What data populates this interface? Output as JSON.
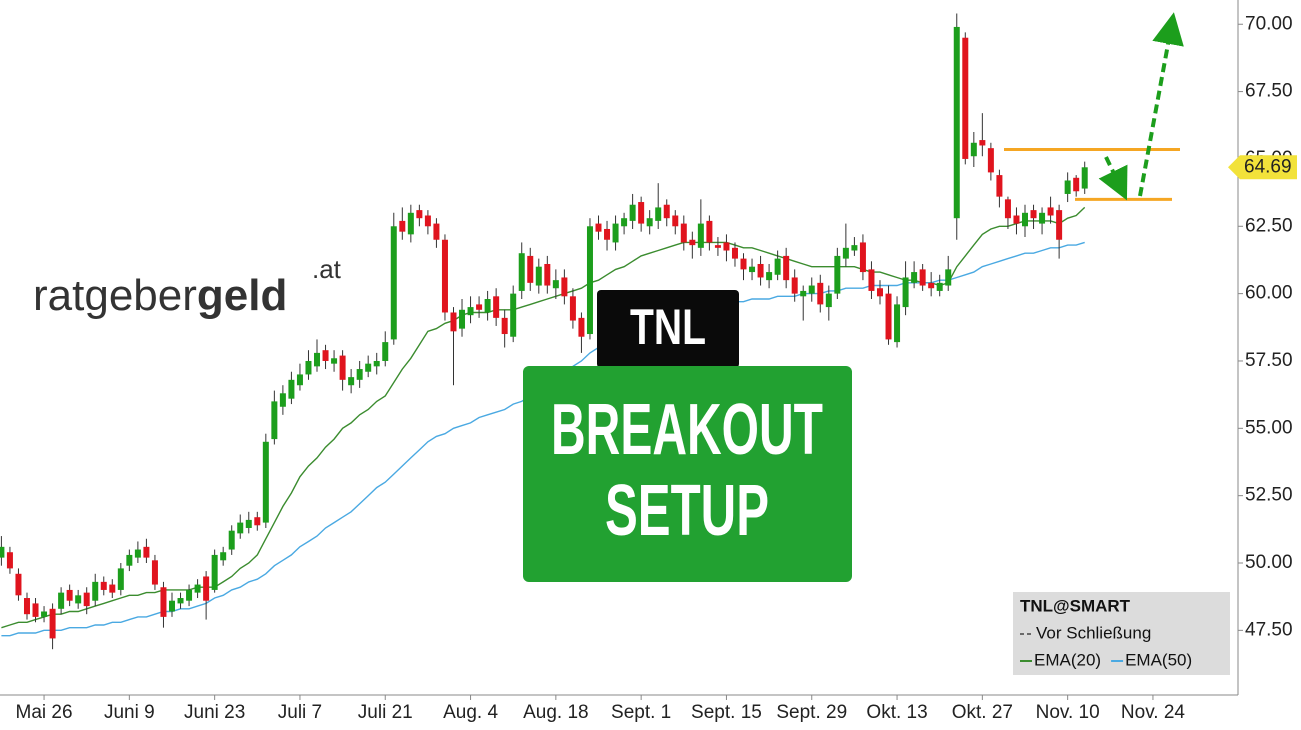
{
  "chart_data": {
    "type": "candlestick",
    "logo": {
      "light": "ratgeber",
      "bold": "geld",
      "suffix": ".at"
    },
    "ticker": "TNL",
    "headline": [
      "BREAKOUT",
      "SETUP"
    ],
    "legend_title": "TNL@SMART",
    "legend_note": "Vor Schließung",
    "up_color": "#1c9e1c",
    "down_color": "#e0141e",
    "level_color": "#f5a623",
    "resistance": 65.35,
    "support": 63.5,
    "categories": [
      null,
      null,
      null,
      null,
      null,
      "Mai 26",
      null,
      null,
      null,
      null,
      null,
      null,
      null,
      null,
      null,
      "Juni 9",
      null,
      null,
      null,
      null,
      null,
      null,
      null,
      null,
      null,
      "Juni 23",
      null,
      null,
      null,
      null,
      null,
      null,
      null,
      null,
      null,
      "Juli 7",
      null,
      null,
      null,
      null,
      null,
      null,
      null,
      null,
      null,
      "Juli 21",
      null,
      null,
      null,
      null,
      null,
      null,
      null,
      null,
      null,
      "Aug. 4",
      null,
      null,
      null,
      null,
      null,
      null,
      null,
      null,
      null,
      "Aug. 18",
      null,
      null,
      null,
      null,
      null,
      null,
      null,
      null,
      null,
      "Sept. 1",
      null,
      null,
      null,
      null,
      null,
      null,
      null,
      null,
      null,
      "Sept. 15",
      null,
      null,
      null,
      null,
      null,
      null,
      null,
      null,
      null,
      "Sept. 29",
      null,
      null,
      null,
      null,
      null,
      null,
      null,
      null,
      null,
      "Okt. 13",
      null,
      null,
      null,
      null,
      null,
      null,
      null,
      null,
      null,
      "Okt. 27",
      null,
      null,
      null,
      null,
      null,
      null,
      null,
      null,
      null,
      "Nov. 10",
      null,
      null,
      null,
      null,
      null,
      null,
      null,
      null,
      null,
      "Nov. 24",
      null,
      null,
      null,
      null
    ],
    "open": [
      50.2,
      50.4,
      49.6,
      48.7,
      48.5,
      48.0,
      48.3,
      48.3,
      49.0,
      48.5,
      48.9,
      48.6,
      49.3,
      49.2,
      49.0,
      49.9,
      50.2,
      50.6,
      50.1,
      49.1,
      48.2,
      48.5,
      48.6,
      48.9,
      49.5,
      49.0,
      50.1,
      50.5,
      51.1,
      51.3,
      51.7,
      51.5,
      54.6,
      55.8,
      56.1,
      56.6,
      57.0,
      57.3,
      57.9,
      57.4,
      57.7,
      56.6,
      56.8,
      57.1,
      57.3,
      57.5,
      58.3,
      62.7,
      62.2,
      63.1,
      62.9,
      62.6,
      62.0,
      59.3,
      58.7,
      59.2,
      59.6,
      59.3,
      59.9,
      59.1,
      58.4,
      60.1,
      61.4,
      60.3,
      61.1,
      60.2,
      60.6,
      59.9,
      59.1,
      58.5,
      62.6,
      62.4,
      61.9,
      62.5,
      62.7,
      63.4,
      62.5,
      62.7,
      63.3,
      62.9,
      62.6,
      62.0,
      61.7,
      62.7,
      61.8,
      61.9,
      61.7,
      61.3,
      60.8,
      61.1,
      60.5,
      60.7,
      61.4,
      60.6,
      59.9,
      60.0,
      60.4,
      59.5,
      60.0,
      61.3,
      61.6,
      61.9,
      60.9,
      60.2,
      60.0,
      58.2,
      59.5,
      60.4,
      60.9,
      60.4,
      60.1,
      60.3,
      62.8,
      69.5,
      65.1,
      65.7,
      65.4,
      64.4,
      63.5,
      62.9,
      62.5,
      63.1,
      62.6,
      63.2,
      63.1,
      63.7,
      64.3,
      63.9,
      null,
      null,
      null,
      null,
      null,
      null,
      null,
      null,
      null,
      null,
      null,
      null
    ],
    "high": [
      51.0,
      50.6,
      49.8,
      48.9,
      48.7,
      48.4,
      48.5,
      49.1,
      49.2,
      49.0,
      49.1,
      49.6,
      49.5,
      49.4,
      50.0,
      50.5,
      50.8,
      50.9,
      50.3,
      49.3,
      48.9,
      48.9,
      49.2,
      49.4,
      49.7,
      50.5,
      50.6,
      51.4,
      51.8,
      51.9,
      51.9,
      54.8,
      56.4,
      56.6,
      57.1,
      57.4,
      57.9,
      58.3,
      58.1,
      57.9,
      57.9,
      57.2,
      57.5,
      57.7,
      57.8,
      58.6,
      63.0,
      63.2,
      63.3,
      63.3,
      63.1,
      62.8,
      62.2,
      59.5,
      59.8,
      59.9,
      59.9,
      60.1,
      60.2,
      59.4,
      60.3,
      61.9,
      61.7,
      61.3,
      61.4,
      60.9,
      60.9,
      60.2,
      59.3,
      62.8,
      62.9,
      62.7,
      62.9,
      63.0,
      63.7,
      63.6,
      63.1,
      64.1,
      63.5,
      63.1,
      62.9,
      62.3,
      63.5,
      62.9,
      62.1,
      62.2,
      61.9,
      61.5,
      61.3,
      61.4,
      61.1,
      61.6,
      61.7,
      60.9,
      60.3,
      60.6,
      60.7,
      60.3,
      61.7,
      62.6,
      62.1,
      62.2,
      61.2,
      60.5,
      60.3,
      59.9,
      61.2,
      61.2,
      61.1,
      60.8,
      60.7,
      61.4,
      70.4,
      69.7,
      66.0,
      66.7,
      65.6,
      64.6,
      63.6,
      63.2,
      63.3,
      63.3,
      63.2,
      63.6,
      63.3,
      64.5,
      64.4,
      64.9,
      null,
      null,
      null,
      null,
      null,
      null,
      null,
      null,
      null,
      null,
      null,
      null
    ],
    "low": [
      49.9,
      49.6,
      48.6,
      47.9,
      47.8,
      47.8,
      46.8,
      48.1,
      48.4,
      48.3,
      48.1,
      48.4,
      48.8,
      48.7,
      48.8,
      49.7,
      50.0,
      50.0,
      49.0,
      47.6,
      48.0,
      48.3,
      48.4,
      48.7,
      47.9,
      48.9,
      49.9,
      50.3,
      50.9,
      51.1,
      51.2,
      51.3,
      54.4,
      55.5,
      55.9,
      56.4,
      56.8,
      57.1,
      57.2,
      57.1,
      56.4,
      56.3,
      56.5,
      56.9,
      57.0,
      57.3,
      58.1,
      62.0,
      61.9,
      62.5,
      62.2,
      61.7,
      59.0,
      56.6,
      58.4,
      58.9,
      59.1,
      59.0,
      58.8,
      58.0,
      58.2,
      59.8,
      60.1,
      60.0,
      60.0,
      59.8,
      59.6,
      58.7,
      57.8,
      58.3,
      62.0,
      61.6,
      61.6,
      62.2,
      62.4,
      62.3,
      62.2,
      62.4,
      62.5,
      62.2,
      61.6,
      61.3,
      61.4,
      61.6,
      61.4,
      61.2,
      61.0,
      60.5,
      60.5,
      60.3,
      60.2,
      60.5,
      60.2,
      59.7,
      59.0,
      59.7,
      59.3,
      59.0,
      59.8,
      61.0,
      61.4,
      60.5,
      59.8,
      59.6,
      58.1,
      58.0,
      59.2,
      60.2,
      60.1,
      59.9,
      59.9,
      60.1,
      62.0,
      64.8,
      64.7,
      65.1,
      64.2,
      63.2,
      62.4,
      62.2,
      62.1,
      62.4,
      62.2,
      62.6,
      61.3,
      63.4,
      63.6,
      63.7,
      null,
      null,
      null,
      null,
      null,
      null,
      null,
      null,
      null,
      null,
      null,
      null
    ],
    "close": [
      50.6,
      49.8,
      48.8,
      48.1,
      48.0,
      48.2,
      47.2,
      48.9,
      48.6,
      48.8,
      48.4,
      49.3,
      49.0,
      48.9,
      49.8,
      50.3,
      50.5,
      50.2,
      49.2,
      48.0,
      48.6,
      48.7,
      49.0,
      49.2,
      48.6,
      50.3,
      50.4,
      51.2,
      51.5,
      51.6,
      51.4,
      54.5,
      56.0,
      56.3,
      56.8,
      57.0,
      57.5,
      57.8,
      57.5,
      57.6,
      56.8,
      56.9,
      57.2,
      57.4,
      57.5,
      58.2,
      62.5,
      62.3,
      63.0,
      62.8,
      62.5,
      62.0,
      59.3,
      58.6,
      59.4,
      59.5,
      59.4,
      59.8,
      59.1,
      58.5,
      60.0,
      61.5,
      60.4,
      61.0,
      60.3,
      60.5,
      59.9,
      59.0,
      58.4,
      62.5,
      62.3,
      62.0,
      62.6,
      62.8,
      63.3,
      62.6,
      62.8,
      63.2,
      62.8,
      62.5,
      61.9,
      61.8,
      62.6,
      61.9,
      61.7,
      61.6,
      61.3,
      60.9,
      61.0,
      60.6,
      60.8,
      61.3,
      60.5,
      60.0,
      60.1,
      60.3,
      59.6,
      60.0,
      61.4,
      61.7,
      61.8,
      60.8,
      60.1,
      59.9,
      58.3,
      59.6,
      60.6,
      60.8,
      60.3,
      60.2,
      60.4,
      60.9,
      69.9,
      65.0,
      65.6,
      65.5,
      64.5,
      63.6,
      62.8,
      62.6,
      63.0,
      62.8,
      63.0,
      62.9,
      62.0,
      64.2,
      63.8,
      64.69,
      null,
      null,
      null,
      null,
      null,
      null,
      null,
      null,
      null,
      null,
      null,
      null
    ],
    "series": [
      {
        "name": "EMA(20)",
        "color": "#3b8c2f",
        "values": [
          47.6,
          47.7,
          47.8,
          47.8,
          47.9,
          48.0,
          48.1,
          48.1,
          48.2,
          48.2,
          48.3,
          48.4,
          48.5,
          48.6,
          48.7,
          48.8,
          48.8,
          48.9,
          48.9,
          49.0,
          49.0,
          49.0,
          49.0,
          49.1,
          49.1,
          49.1,
          49.3,
          49.5,
          49.8,
          50.0,
          50.3,
          50.9,
          51.5,
          52.1,
          52.6,
          53.2,
          53.6,
          53.9,
          54.3,
          54.6,
          55.0,
          55.2,
          55.5,
          55.7,
          56.0,
          56.2,
          56.7,
          57.2,
          57.6,
          58.1,
          58.6,
          58.7,
          58.9,
          59.0,
          59.2,
          59.3,
          59.3,
          59.3,
          59.4,
          59.4,
          59.4,
          59.5,
          59.6,
          59.7,
          59.8,
          59.9,
          60.0,
          60.1,
          60.2,
          60.4,
          60.5,
          60.7,
          60.9,
          61.0,
          61.2,
          61.4,
          61.5,
          61.6,
          61.7,
          61.8,
          61.9,
          61.9,
          61.9,
          61.9,
          61.9,
          61.9,
          61.8,
          61.7,
          61.7,
          61.6,
          61.5,
          61.4,
          61.3,
          61.2,
          61.1,
          61.0,
          61.0,
          61.0,
          61.0,
          61.0,
          61.0,
          60.9,
          60.8,
          60.8,
          60.7,
          60.6,
          60.5,
          60.5,
          60.4,
          60.4,
          60.3,
          60.4,
          61.0,
          61.4,
          61.8,
          62.2,
          62.4,
          62.5,
          62.5,
          62.6,
          62.7,
          62.7,
          62.7,
          62.7,
          62.6,
          62.8,
          62.9,
          63.2,
          null,
          null,
          null,
          null,
          null,
          null,
          null,
          null,
          null,
          null,
          null,
          null
        ]
      },
      {
        "name": "EMA(50)",
        "color": "#4aa9e2",
        "values": [
          47.3,
          47.3,
          47.4,
          47.4,
          47.4,
          47.5,
          47.5,
          47.5,
          47.6,
          47.6,
          47.6,
          47.7,
          47.7,
          47.8,
          47.8,
          47.9,
          48.0,
          48.0,
          48.1,
          48.2,
          48.2,
          48.3,
          48.3,
          48.4,
          48.5,
          48.7,
          48.8,
          49.0,
          49.1,
          49.3,
          49.4,
          49.6,
          49.9,
          50.1,
          50.3,
          50.6,
          50.8,
          51.0,
          51.3,
          51.5,
          51.7,
          51.9,
          52.2,
          52.5,
          52.8,
          53.0,
          53.3,
          53.6,
          53.9,
          54.2,
          54.5,
          54.7,
          54.8,
          55.0,
          55.1,
          55.2,
          55.4,
          55.5,
          55.6,
          55.7,
          55.9,
          56.0,
          56.2,
          56.5,
          56.7,
          56.9,
          57.1,
          57.3,
          57.5,
          57.8,
          58.0,
          58.1,
          58.3,
          58.4,
          58.5,
          58.6,
          58.8,
          58.9,
          59.0,
          59.1,
          59.3,
          59.4,
          59.5,
          59.5,
          59.6,
          59.6,
          59.7,
          59.7,
          59.8,
          59.8,
          59.8,
          59.9,
          59.9,
          59.9,
          60.0,
          60.0,
          60.0,
          60.1,
          60.1,
          60.2,
          60.2,
          60.2,
          60.3,
          60.3,
          60.3,
          60.3,
          60.4,
          60.4,
          60.4,
          60.4,
          60.5,
          60.5,
          60.6,
          60.7,
          60.8,
          61.0,
          61.1,
          61.2,
          61.3,
          61.4,
          61.5,
          61.5,
          61.6,
          61.7,
          61.7,
          61.8,
          61.8,
          61.9,
          null,
          null,
          null,
          null,
          null,
          null,
          null,
          null,
          null,
          null,
          null,
          null
        ]
      }
    ],
    "ylim": [
      45.1,
      70.9
    ],
    "yticks": [
      {
        "value": 47.5,
        "label": "47.50"
      },
      {
        "value": 50,
        "label": "50.00"
      },
      {
        "value": 52.5,
        "label": "52.50"
      },
      {
        "value": 55,
        "label": "55.00"
      },
      {
        "value": 57.5,
        "label": "57.50"
      },
      {
        "value": 60,
        "label": "60.00"
      },
      {
        "value": 62.5,
        "label": "62.50"
      },
      {
        "value": 65,
        "label": "65.00"
      },
      {
        "value": 67.5,
        "label": "67.50"
      },
      {
        "value": 70,
        "label": "70.00"
      }
    ],
    "grid": false
  }
}
